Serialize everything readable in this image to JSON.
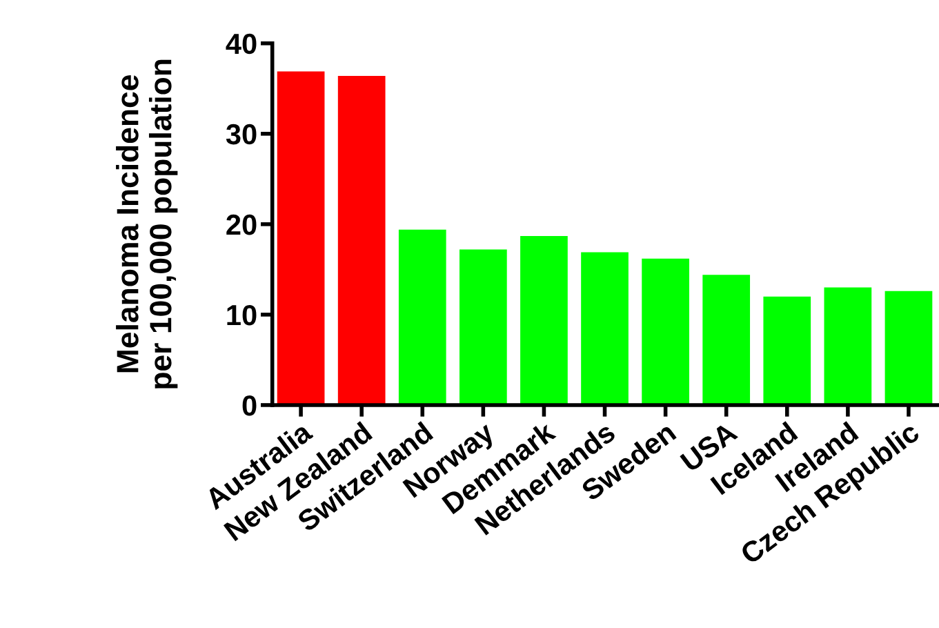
{
  "chart_data": {
    "type": "bar",
    "ylabel": "Melanoma Incidence\nper 100,000 population",
    "categories": [
      "Australia",
      "New Zealand",
      "Switzerland",
      "Norway",
      "Demmark",
      "Netherlands",
      "Sweden",
      "USA",
      "Iceland",
      "Ireland",
      "Czech Republic"
    ],
    "values": [
      36.9,
      36.4,
      19.4,
      17.2,
      18.7,
      16.9,
      16.2,
      14.4,
      12.0,
      13.0,
      12.6
    ],
    "colors": [
      "#ff0000",
      "#ff0000",
      "#00ff00",
      "#00ff00",
      "#00ff00",
      "#00ff00",
      "#00ff00",
      "#00ff00",
      "#00ff00",
      "#00ff00",
      "#00ff00"
    ],
    "ylim": [
      0,
      40
    ],
    "yticks": [
      0,
      10,
      20,
      30,
      40
    ],
    "grid": false,
    "legend": false
  }
}
